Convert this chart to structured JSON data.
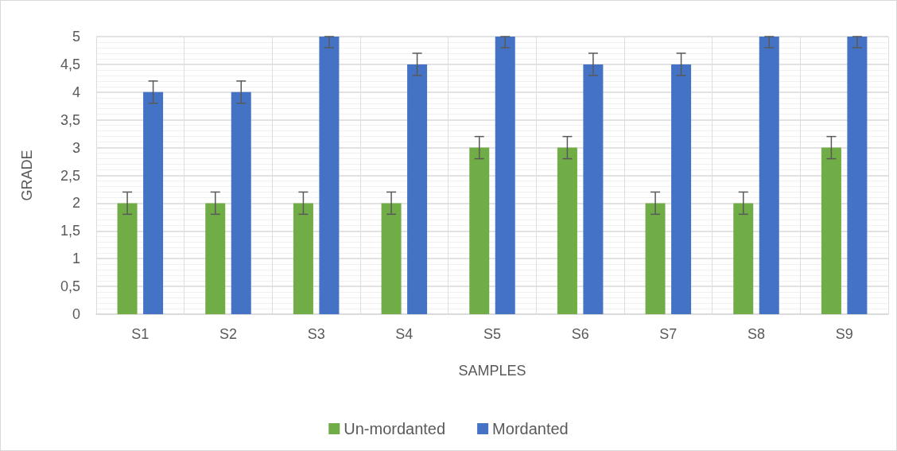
{
  "chart_data": {
    "type": "bar",
    "xlabel": "SAMPLES",
    "ylabel": "GRADE",
    "categories": [
      "S1",
      "S2",
      "S3",
      "S4",
      "S5",
      "S6",
      "S7",
      "S8",
      "S9"
    ],
    "series": [
      {
        "name": "Un-mordanted",
        "color": "#70ad47",
        "values": [
          2,
          2,
          2,
          2,
          3,
          3,
          2,
          2,
          3
        ],
        "errors": [
          0.2,
          0.2,
          0.2,
          0.2,
          0.2,
          0.2,
          0.2,
          0.2,
          0.2
        ]
      },
      {
        "name": "Mordanted",
        "color": "#4472c4",
        "values": [
          4,
          4,
          5,
          4.5,
          5,
          4.5,
          4.5,
          5,
          5
        ],
        "errors": [
          0.2,
          0.2,
          [
            4.8,
            5
          ],
          0.2,
          [
            4.8,
            5
          ],
          0.2,
          0.2,
          [
            4.8,
            5
          ],
          [
            4.8,
            5
          ]
        ]
      }
    ],
    "ylim": [
      0,
      5
    ],
    "yticks": [
      0,
      {
        "value": 0.5,
        "label": "0,5"
      },
      1,
      {
        "value": 1.5,
        "label": "1,5"
      },
      2,
      {
        "value": 2.5,
        "label": "2,5"
      },
      3,
      {
        "value": 3.5,
        "label": "3,5"
      },
      4,
      {
        "value": 4.5,
        "label": "4,5"
      },
      5
    ],
    "grid": true,
    "legend": "bottom"
  }
}
